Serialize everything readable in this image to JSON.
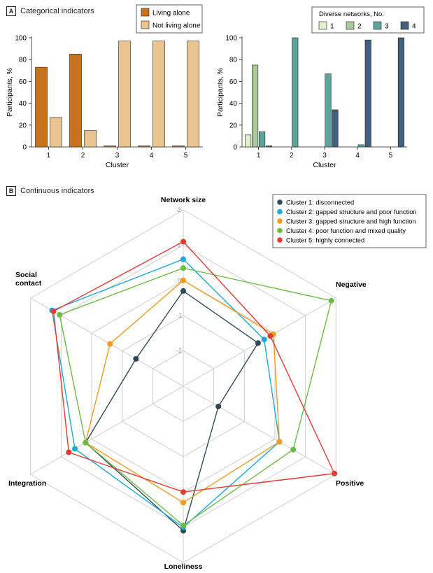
{
  "panel_a": {
    "letter": "A",
    "title": "Categorical indicators"
  },
  "panel_b": {
    "letter": "B",
    "title": "Continuous indicators"
  },
  "colors": {
    "living_alone": "#c8731c",
    "not_living_alone": "#e8c48e",
    "div1": "#e2efcd",
    "div2": "#a9c99a",
    "div3": "#5ea49a",
    "div4": "#42607e",
    "cluster1": "#2f4a57",
    "cluster2": "#1ca9df",
    "cluster3": "#f39a1f",
    "cluster4": "#6dbd45",
    "cluster5": "#e43a2f",
    "grid": "#cfcfcf"
  },
  "chart_data": [
    {
      "type": "bar",
      "categories": [
        "1",
        "2",
        "3",
        "4",
        "5"
      ],
      "xlabel": "Cluster",
      "ylabel": "Participants, %",
      "ylim": [
        0,
        100
      ],
      "yticks": [
        "0",
        "20",
        "40",
        "60",
        "80",
        "100"
      ],
      "legend_position": "top-right",
      "series": [
        {
          "name": "Living alone",
          "values": [
            73,
            85,
            1,
            1,
            1
          ]
        },
        {
          "name": "Not living alone",
          "values": [
            27,
            15,
            97,
            97,
            97
          ]
        }
      ]
    },
    {
      "type": "bar",
      "categories": [
        "1",
        "2",
        "3",
        "4",
        "5"
      ],
      "xlabel": "Cluster",
      "ylabel": "Participants, %",
      "ylim": [
        0,
        100
      ],
      "yticks": [
        "0",
        "20",
        "40",
        "60",
        "80",
        "100"
      ],
      "legend_title": "Diverse networks, No.",
      "legend_position": "top-right",
      "series": [
        {
          "name": "1",
          "values": [
            11,
            0,
            0,
            0,
            0
          ]
        },
        {
          "name": "2",
          "values": [
            75,
            0,
            0,
            0,
            0
          ]
        },
        {
          "name": "3",
          "values": [
            14,
            100,
            67,
            2,
            0
          ]
        },
        {
          "name": "4",
          "values": [
            1,
            0,
            34,
            98,
            100
          ]
        }
      ]
    },
    {
      "type": "radar",
      "axes": [
        "Network size",
        "Negative",
        "Positive",
        "Loneliness",
        "Integration",
        "Social contact"
      ],
      "axis_label_lines": [
        [
          "Network size"
        ],
        [
          "Negative"
        ],
        [
          "Positive"
        ],
        [
          "Loneliness"
        ],
        [
          "Integration"
        ],
        [
          "Social",
          "contact"
        ]
      ],
      "rlim": [
        -3,
        2
      ],
      "rticks": [
        "-2",
        "-1",
        "0",
        "1",
        "2"
      ],
      "legend_position": "top-right",
      "series": [
        {
          "name": "Cluster 1: disconnected",
          "values": [
            -0.3,
            -0.55,
            -1.85,
            1.1,
            0.2,
            -1.45
          ]
        },
        {
          "name": "Cluster 2: gapped structure and poor function",
          "values": [
            0.6,
            -0.35,
            0.15,
            1.0,
            0.55,
            1.3
          ]
        },
        {
          "name": "Cluster 3: gapped structure and high function",
          "values": [
            0.0,
            -0.05,
            0.15,
            0.3,
            0.2,
            -0.6
          ]
        },
        {
          "name": "Cluster 4: poor function and mixed quality",
          "values": [
            0.35,
            1.85,
            0.6,
            0.95,
            0.2,
            1.05
          ]
        },
        {
          "name": "Cluster 5: highly connected",
          "values": [
            1.1,
            -0.15,
            1.95,
            0.0,
            0.75,
            1.25
          ]
        }
      ]
    }
  ]
}
